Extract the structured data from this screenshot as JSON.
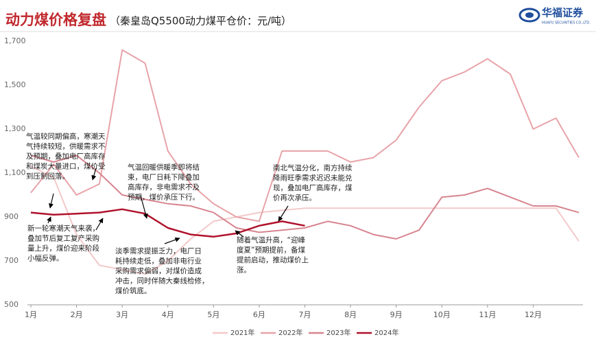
{
  "header": {
    "title": "动力煤价格复盘",
    "subtitle": "（秦皇岛Q5500动力煤平仓价：元/吨）",
    "logo": "华福证券",
    "logo_sub": "HUAFU SECURITIES CO.,LTD."
  },
  "chart_data": {
    "type": "line",
    "x": [
      1,
      1.5,
      2,
      2.5,
      3,
      3.5,
      4,
      4.5,
      5,
      5.5,
      6,
      6.5,
      7,
      7.5,
      8,
      8.5,
      9,
      9.5,
      10,
      10.5,
      11,
      11.5,
      12,
      12.5,
      13
    ],
    "xlim": [
      1,
      13
    ],
    "xticks": [
      {
        "value": 1,
        "label": "1月"
      },
      {
        "value": 2,
        "label": "2月"
      },
      {
        "value": 3,
        "label": "3月"
      },
      {
        "value": 4,
        "label": "4月"
      },
      {
        "value": 5,
        "label": "5月"
      },
      {
        "value": 6,
        "label": "6月"
      },
      {
        "value": 7,
        "label": "7月"
      },
      {
        "value": 8,
        "label": "8月"
      },
      {
        "value": 9,
        "label": "9月"
      },
      {
        "value": 10,
        "label": "10月"
      },
      {
        "value": 11,
        "label": "11月"
      },
      {
        "value": 12,
        "label": "12月"
      }
    ],
    "ylim": [
      500,
      1700
    ],
    "yticks": [
      500,
      700,
      900,
      {
        "value": 1100,
        "label": "1,100"
      },
      {
        "value": 1300,
        "label": "1,300"
      },
      {
        "value": 1500,
        "label": "1,500"
      },
      {
        "value": 1700,
        "label": "1,700"
      }
    ],
    "series": [
      {
        "name": "2021年",
        "color": "#f3c9c9",
        "values": [
          1130,
          1080,
          820,
          680,
          660,
          640,
          700,
          800,
          880,
          900,
          920,
          930,
          940,
          940,
          940,
          940,
          940,
          940,
          940,
          940,
          940,
          940,
          940,
          940,
          790
        ]
      },
      {
        "name": "2022年",
        "color": "#e8a3a8",
        "values": [
          1010,
          1140,
          1000,
          1050,
          1660,
          1600,
          1200,
          1050,
          960,
          900,
          880,
          1200,
          1200,
          1200,
          1150,
          1170,
          1250,
          1400,
          1520,
          1560,
          1620,
          1550,
          1300,
          1350,
          1170
        ]
      },
      {
        "name": "2023年",
        "color": "#d7848f",
        "values": [
          1180,
          1150,
          1180,
          1100,
          1000,
          980,
          960,
          950,
          920,
          850,
          830,
          840,
          850,
          880,
          860,
          820,
          800,
          840,
          990,
          1000,
          1030,
          990,
          950,
          950,
          920
        ]
      },
      {
        "name": "2024年",
        "color": "#b0112b",
        "values": [
          920,
          910,
          915,
          920,
          935,
          915,
          850,
          820,
          810,
          825,
          860,
          880,
          860,
          null,
          null,
          null,
          null,
          null,
          null,
          null,
          null,
          null,
          null,
          null,
          null
        ]
      }
    ],
    "annotations": [
      [
        "气温较同期偏高，寒潮天",
        "气持续较短，供暖需求不",
        "及预期，叠加电厂高库存",
        "和煤炭大量进口，煤价受",
        "到压制回落。"
      ],
      [
        "新一轮寒潮天气来袭，",
        "叠加节后复工复产采购",
        "量上升，煤价迎来阶段",
        "小幅反弹。"
      ],
      [
        "气温回暖供暖季即将结",
        "束，电厂日耗下降叠加",
        "高库存，非电需求不及",
        "预期，煤价承压下行。"
      ],
      [
        "淡季需求提振乏力，电厂日",
        "耗持续走低，叠加非电行业",
        "采购需求偏弱，对煤价造成",
        "冲击，同时伴随大秦线检修，",
        "煤价筑底。"
      ],
      [
        "南北气温分化，南方持续",
        "降雨旺季需求迟迟未能兑",
        "现，叠加电厂高库存，煤",
        "价再次承压。"
      ],
      [
        "随着气温升高，“迎峰",
        "度夏”预期提前，备煤",
        "提前启动，推动煤价上",
        "涨。"
      ]
    ]
  }
}
